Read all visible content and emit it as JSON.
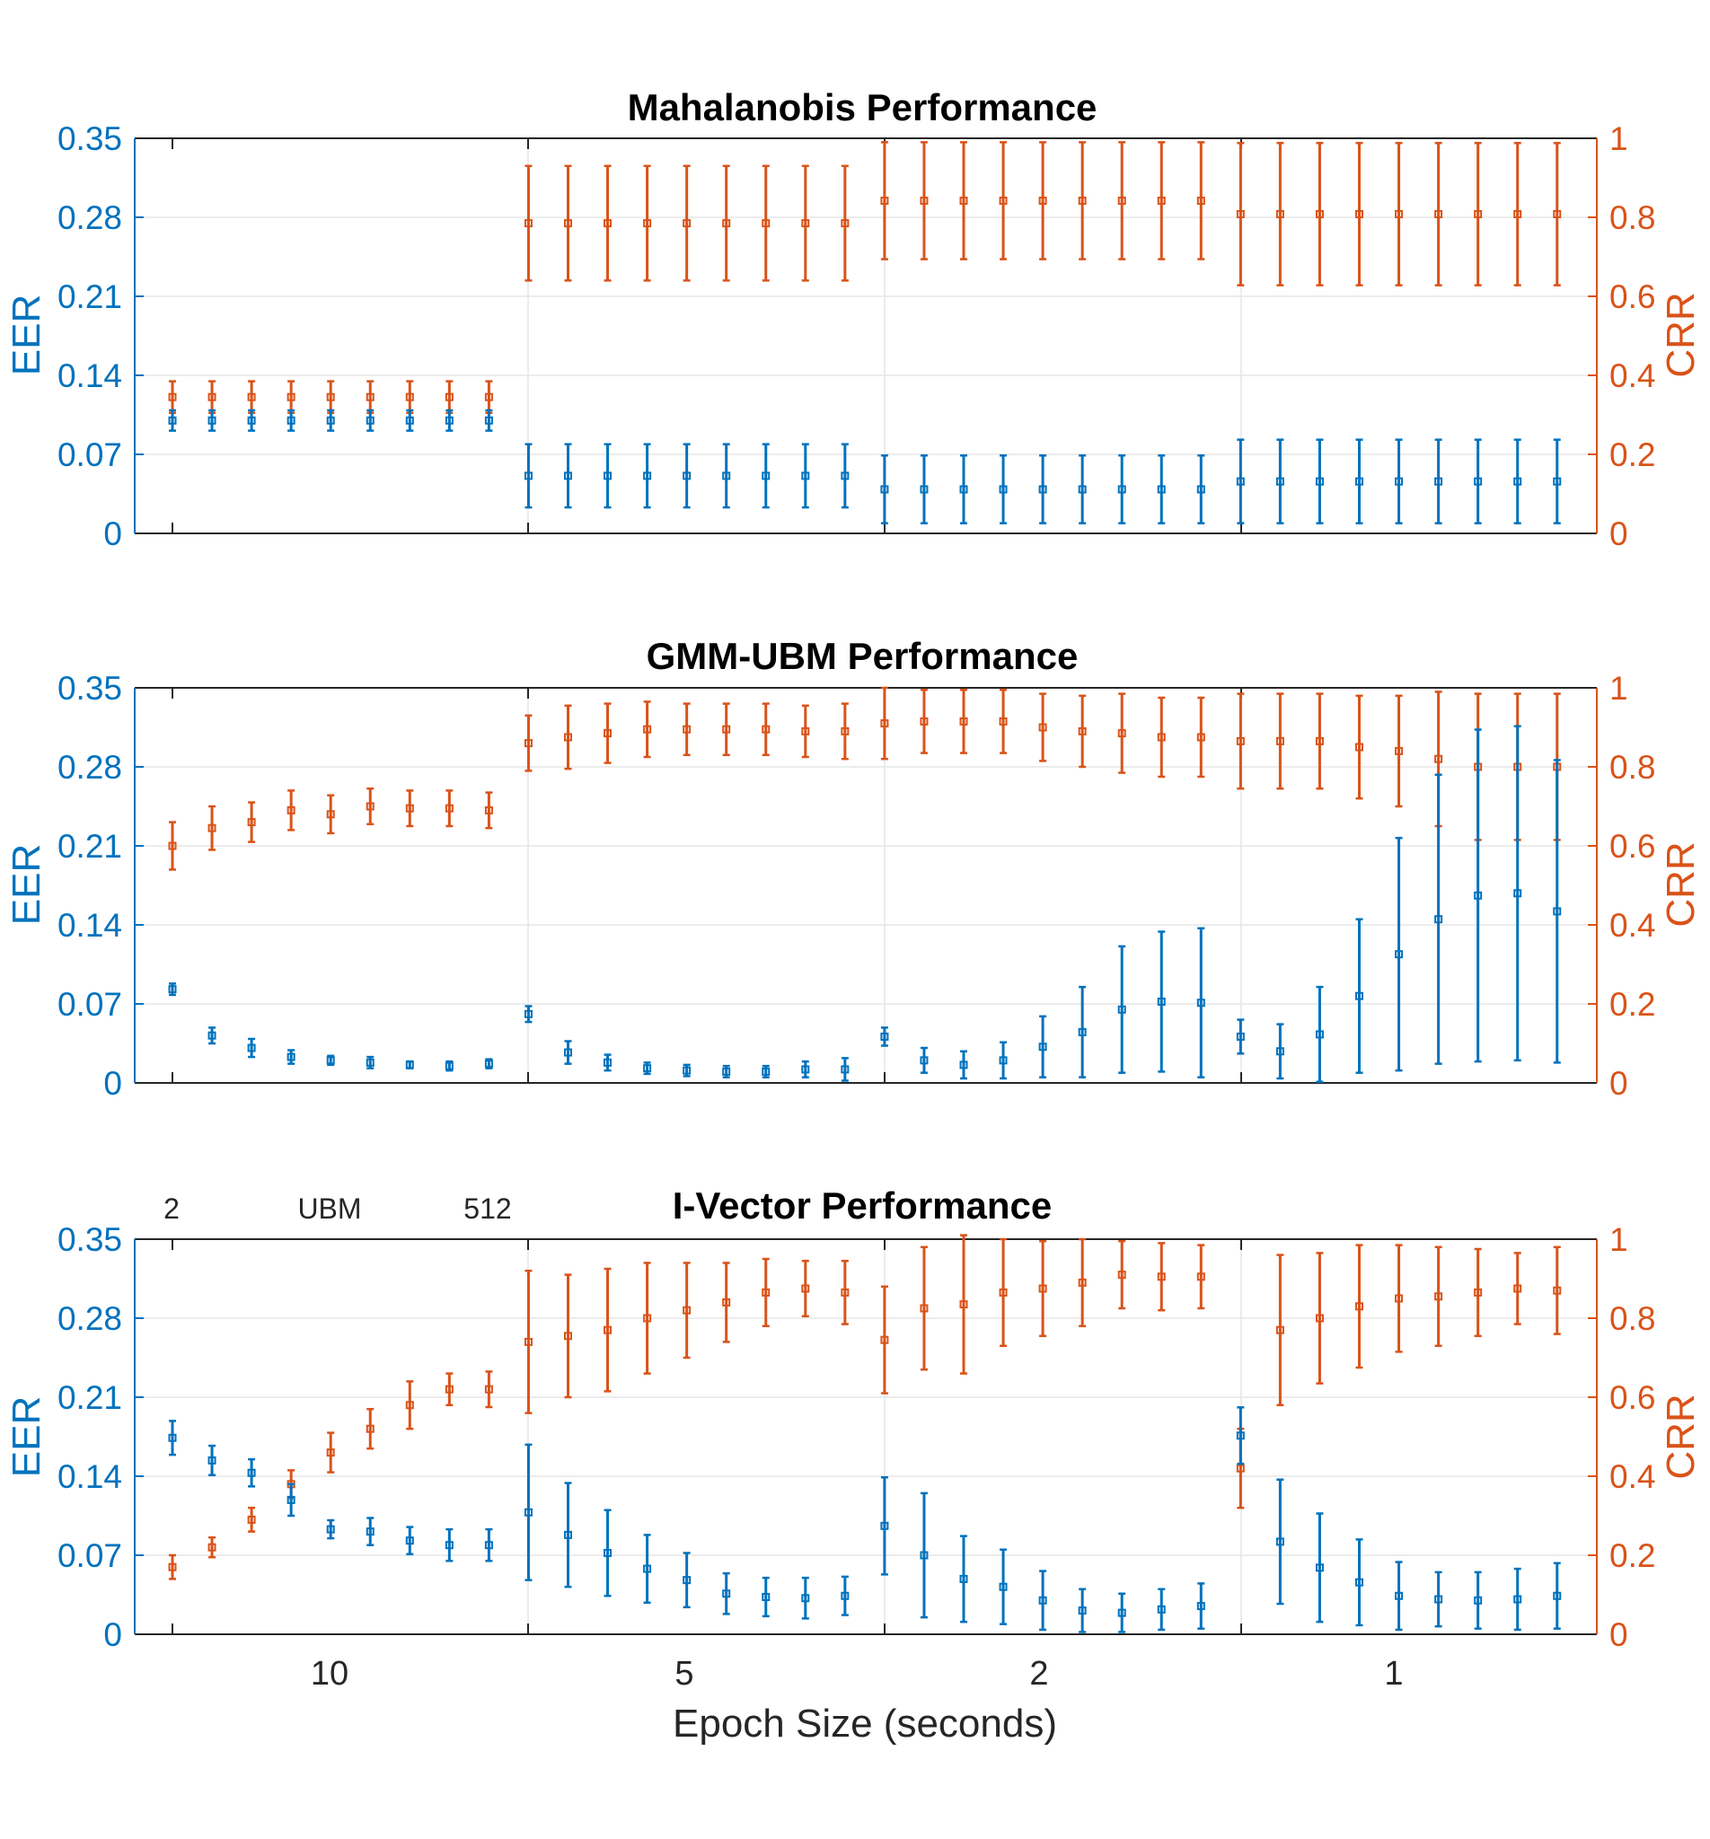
{
  "chart_data": [
    {
      "type": "scatter",
      "title": "Mahalanobis Performance",
      "ylabel_left": "EER",
      "ylabel_right": "CRR",
      "ylim_left": [
        0,
        0.35
      ],
      "ylim_right": [
        0,
        1
      ],
      "yticks_left": [
        "0",
        "0.07",
        "0.14",
        "0.21",
        "0.28",
        "0.35"
      ],
      "yticks_right": [
        "0",
        "0.2",
        "0.4",
        "0.6",
        "0.8",
        "1"
      ],
      "grid": true,
      "colors": {
        "EER": "#0072BD",
        "CRR": "#D95319"
      },
      "EER": {
        "values": [
          0.1,
          0.1,
          0.1,
          0.1,
          0.1,
          0.1,
          0.1,
          0.1,
          0.1,
          0.051,
          0.051,
          0.051,
          0.051,
          0.051,
          0.051,
          0.051,
          0.051,
          0.051,
          0.039,
          0.039,
          0.039,
          0.039,
          0.039,
          0.039,
          0.039,
          0.039,
          0.039,
          0.046,
          0.046,
          0.046,
          0.046,
          0.046,
          0.046,
          0.046,
          0.046,
          0.046
        ],
        "errors": [
          0.009,
          0.009,
          0.009,
          0.009,
          0.009,
          0.009,
          0.009,
          0.009,
          0.009,
          0.028,
          0.028,
          0.028,
          0.028,
          0.028,
          0.028,
          0.028,
          0.028,
          0.028,
          0.03,
          0.03,
          0.03,
          0.03,
          0.03,
          0.03,
          0.03,
          0.03,
          0.03,
          0.037,
          0.037,
          0.037,
          0.037,
          0.037,
          0.037,
          0.037,
          0.037,
          0.037
        ]
      },
      "CRR": {
        "values": [
          0.345,
          0.345,
          0.345,
          0.345,
          0.345,
          0.345,
          0.345,
          0.345,
          0.345,
          0.785,
          0.785,
          0.785,
          0.785,
          0.785,
          0.785,
          0.785,
          0.785,
          0.785,
          0.842,
          0.842,
          0.842,
          0.842,
          0.842,
          0.842,
          0.842,
          0.842,
          0.842,
          0.808,
          0.808,
          0.808,
          0.808,
          0.808,
          0.808,
          0.808,
          0.808,
          0.808
        ],
        "errors": [
          0.04,
          0.04,
          0.04,
          0.04,
          0.04,
          0.04,
          0.04,
          0.04,
          0.04,
          0.145,
          0.145,
          0.145,
          0.145,
          0.145,
          0.145,
          0.145,
          0.145,
          0.145,
          0.148,
          0.148,
          0.148,
          0.148,
          0.148,
          0.148,
          0.148,
          0.148,
          0.148,
          0.18,
          0.18,
          0.18,
          0.18,
          0.18,
          0.18,
          0.18,
          0.18,
          0.18
        ]
      }
    },
    {
      "type": "scatter",
      "title": "GMM-UBM Performance",
      "ylabel_left": "EER",
      "ylabel_right": "CRR",
      "ylim_left": [
        0,
        0.35
      ],
      "ylim_right": [
        0,
        1
      ],
      "yticks_left": [
        "0",
        "0.07",
        "0.14",
        "0.21",
        "0.28",
        "0.35"
      ],
      "yticks_right": [
        "0",
        "0.2",
        "0.4",
        "0.6",
        "0.8",
        "1"
      ],
      "grid": true,
      "colors": {
        "EER": "#0072BD",
        "CRR": "#D95319"
      },
      "EER": {
        "values": [
          0.083,
          0.042,
          0.031,
          0.023,
          0.02,
          0.018,
          0.016,
          0.015,
          0.017,
          0.061,
          0.027,
          0.018,
          0.013,
          0.011,
          0.01,
          0.01,
          0.012,
          0.012,
          0.041,
          0.02,
          0.016,
          0.02,
          0.032,
          0.045,
          0.065,
          0.072,
          0.071,
          0.041,
          0.028,
          0.043,
          0.077,
          0.114,
          0.145,
          0.166,
          0.168,
          0.152
        ],
        "errors": [
          0.005,
          0.007,
          0.008,
          0.006,
          0.004,
          0.005,
          0.003,
          0.004,
          0.004,
          0.007,
          0.01,
          0.007,
          0.005,
          0.005,
          0.005,
          0.005,
          0.007,
          0.01,
          0.008,
          0.011,
          0.012,
          0.016,
          0.027,
          0.04,
          0.056,
          0.062,
          0.066,
          0.015,
          0.024,
          0.042,
          0.068,
          0.103,
          0.128,
          0.147,
          0.148,
          0.134
        ]
      },
      "CRR": {
        "values": [
          0.6,
          0.645,
          0.66,
          0.69,
          0.68,
          0.7,
          0.695,
          0.695,
          0.69,
          0.86,
          0.875,
          0.885,
          0.895,
          0.895,
          0.895,
          0.895,
          0.89,
          0.89,
          0.91,
          0.915,
          0.915,
          0.915,
          0.9,
          0.89,
          0.885,
          0.875,
          0.875,
          0.865,
          0.865,
          0.865,
          0.85,
          0.84,
          0.82,
          0.8,
          0.8,
          0.8
        ],
        "errors": [
          0.06,
          0.055,
          0.05,
          0.05,
          0.048,
          0.045,
          0.045,
          0.045,
          0.045,
          0.07,
          0.08,
          0.075,
          0.07,
          0.065,
          0.065,
          0.065,
          0.065,
          0.07,
          0.09,
          0.08,
          0.08,
          0.08,
          0.085,
          0.09,
          0.1,
          0.1,
          0.1,
          0.12,
          0.12,
          0.12,
          0.13,
          0.14,
          0.17,
          0.185,
          0.185,
          0.185
        ]
      }
    },
    {
      "type": "scatter",
      "title": "I-Vector Performance",
      "ylabel_left": "EER",
      "ylabel_right": "CRR",
      "ylim_left": [
        0,
        0.35
      ],
      "ylim_right": [
        0,
        1
      ],
      "yticks_left": [
        "0",
        "0.07",
        "0.14",
        "0.21",
        "0.28",
        "0.35"
      ],
      "yticks_right": [
        "0",
        "0.2",
        "0.4",
        "0.6",
        "0.8",
        "1"
      ],
      "grid": true,
      "colors": {
        "EER": "#0072BD",
        "CRR": "#D95319"
      },
      "top_axis": {
        "ticks": [
          "2",
          "UBM",
          "512"
        ]
      },
      "EER": {
        "values": [
          0.174,
          0.154,
          0.143,
          0.119,
          0.093,
          0.091,
          0.083,
          0.079,
          0.079,
          0.108,
          0.088,
          0.072,
          0.058,
          0.048,
          0.036,
          0.033,
          0.032,
          0.034,
          0.096,
          0.07,
          0.049,
          0.042,
          0.03,
          0.021,
          0.019,
          0.022,
          0.025,
          0.176,
          0.082,
          0.059,
          0.046,
          0.034,
          0.031,
          0.03,
          0.031,
          0.034
        ],
        "errors": [
          0.015,
          0.013,
          0.012,
          0.014,
          0.008,
          0.012,
          0.012,
          0.014,
          0.014,
          0.06,
          0.046,
          0.038,
          0.03,
          0.024,
          0.018,
          0.017,
          0.018,
          0.017,
          0.043,
          0.055,
          0.038,
          0.033,
          0.026,
          0.019,
          0.017,
          0.018,
          0.02,
          0.025,
          0.055,
          0.048,
          0.038,
          0.03,
          0.024,
          0.025,
          0.027,
          0.029
        ]
      },
      "CRR": {
        "values": [
          0.17,
          0.22,
          0.29,
          0.38,
          0.46,
          0.52,
          0.58,
          0.62,
          0.62,
          0.74,
          0.755,
          0.77,
          0.8,
          0.82,
          0.84,
          0.865,
          0.875,
          0.865,
          0.745,
          0.825,
          0.835,
          0.865,
          0.875,
          0.89,
          0.91,
          0.905,
          0.905,
          0.42,
          0.77,
          0.8,
          0.83,
          0.85,
          0.855,
          0.865,
          0.875,
          0.87
        ],
        "errors": [
          0.03,
          0.025,
          0.03,
          0.035,
          0.05,
          0.05,
          0.06,
          0.04,
          0.045,
          0.18,
          0.155,
          0.155,
          0.14,
          0.12,
          0.1,
          0.085,
          0.07,
          0.08,
          0.135,
          0.155,
          0.175,
          0.135,
          0.12,
          0.11,
          0.085,
          0.085,
          0.08,
          0.1,
          0.19,
          0.165,
          0.155,
          0.135,
          0.125,
          0.11,
          0.09,
          0.11
        ]
      }
    }
  ],
  "bottom_axis": {
    "ticks": [
      "10",
      "5",
      "2",
      "1"
    ],
    "xlabel": "Epoch Size (seconds)"
  }
}
